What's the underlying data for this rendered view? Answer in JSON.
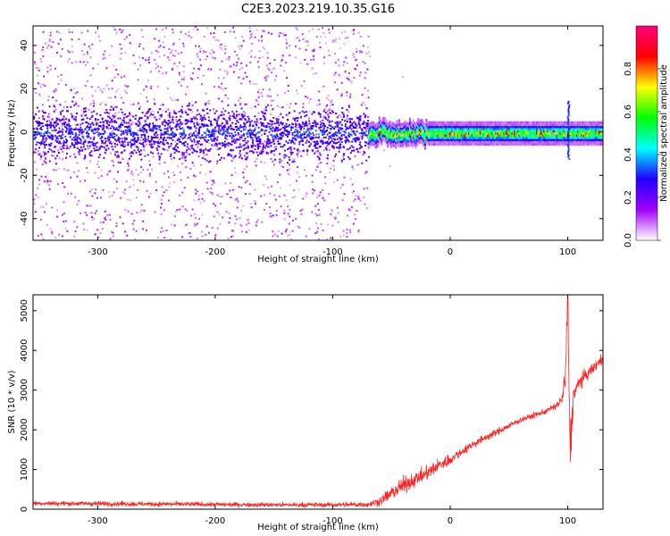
{
  "title": "C2E3.2023.219.10.35.G16",
  "chart_data": [
    {
      "type": "heatmap",
      "xlabel": "Height of straight line (km)",
      "ylabel": "Frequency (Hz)",
      "xlim": [
        -355,
        130
      ],
      "ylim": [
        -50,
        49
      ],
      "xticks": [
        -300,
        -200,
        -100,
        0,
        100
      ],
      "yticks": [
        -40,
        -20,
        0,
        20,
        40
      ],
      "colorbar": {
        "label": "Normalized spectral amplitude",
        "range": [
          0,
          1
        ],
        "ticks": [
          "0.0",
          "0.2",
          "0.4",
          "0.6",
          "0.8"
        ],
        "colormap": [
          "#ffffff",
          "#a000ff",
          "#2000ff",
          "#00ffff",
          "#00ff00",
          "#ffff00",
          "#ff0000",
          "#ff0080"
        ]
      },
      "features": [
        {
          "description_x_range": [
            -355,
            -70
          ],
          "ridge_frequency": 0,
          "ridge_halfwidth_hz": 8,
          "scatter_halfwidth_hz": 50,
          "peak_amplitude": 0.35
        },
        {
          "description_x_range": [
            -70,
            130
          ],
          "ridge_frequency": 0,
          "ridge_halfwidth_hz": 3,
          "peak_amplitude": 0.9
        },
        {
          "x": 100,
          "frequency_spike": [
            -12,
            15
          ]
        }
      ]
    },
    {
      "type": "line",
      "xlabel": "Height of straight line (km)",
      "ylabel": "SNR (10 * v/v)",
      "xlim": [
        -355,
        130
      ],
      "ylim": [
        0,
        5400
      ],
      "xticks": [
        -300,
        -200,
        -100,
        0,
        100
      ],
      "yticks": [
        0,
        1000,
        2000,
        3000,
        4000,
        5000
      ],
      "series": [
        {
          "color": "#ff2020",
          "x": [
            -355,
            -300,
            -250,
            -200,
            -150,
            -100,
            -70,
            -60,
            -50,
            -40,
            -30,
            -20,
            -10,
            0,
            10,
            20,
            30,
            40,
            50,
            60,
            70,
            80,
            90,
            95,
            98,
            100,
            102,
            105,
            110,
            120,
            130
          ],
          "y": [
            150,
            140,
            130,
            120,
            110,
            110,
            120,
            200,
            400,
            600,
            750,
            900,
            1100,
            1250,
            1450,
            1650,
            1800,
            1950,
            2100,
            2250,
            2350,
            2450,
            2600,
            2750,
            3300,
            5300,
            1500,
            2900,
            3200,
            3500,
            3800
          ],
          "noise": [
            80,
            80,
            80,
            80,
            80,
            80,
            100,
            150,
            250,
            300,
            250,
            250,
            250,
            200,
            150,
            150,
            120,
            120,
            120,
            100,
            100,
            100,
            120,
            200,
            600,
            800,
            900,
            300,
            250,
            200,
            200
          ]
        }
      ]
    }
  ]
}
